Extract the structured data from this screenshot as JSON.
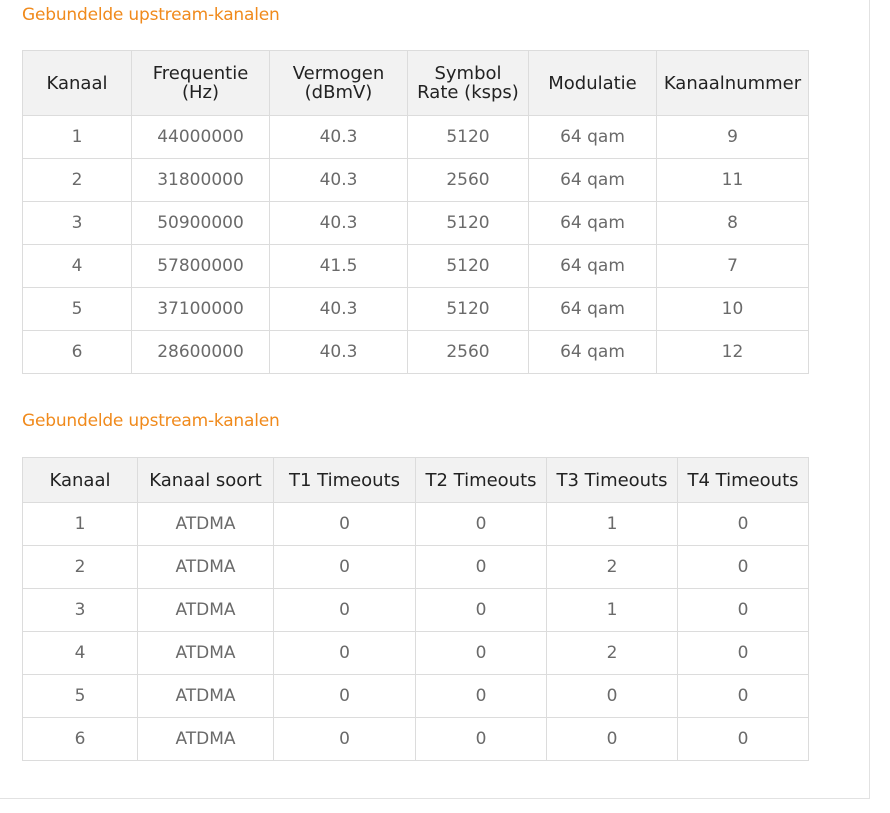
{
  "section1": {
    "title": "Gebundelde upstream-kanalen",
    "headers": [
      [
        "Kanaal"
      ],
      [
        "Frequentie",
        "(Hz)"
      ],
      [
        "Vermogen",
        "(dBmV)"
      ],
      [
        "Symbol",
        "Rate (ksps)"
      ],
      [
        "Modulatie"
      ],
      [
        "Kanaalnummer"
      ]
    ],
    "rows": [
      [
        "1",
        "44000000",
        "40.3",
        "5120",
        "64 qam",
        "9"
      ],
      [
        "2",
        "31800000",
        "40.3",
        "2560",
        "64 qam",
        "11"
      ],
      [
        "3",
        "50900000",
        "40.3",
        "5120",
        "64 qam",
        "8"
      ],
      [
        "4",
        "57800000",
        "41.5",
        "5120",
        "64 qam",
        "7"
      ],
      [
        "5",
        "37100000",
        "40.3",
        "5120",
        "64 qam",
        "10"
      ],
      [
        "6",
        "28600000",
        "40.3",
        "2560",
        "64 qam",
        "12"
      ]
    ]
  },
  "section2": {
    "title": "Gebundelde upstream-kanalen",
    "headers": [
      [
        "Kanaal"
      ],
      [
        "Kanaal soort"
      ],
      [
        "T1 Timeouts"
      ],
      [
        "T2 Timeouts"
      ],
      [
        "T3 Timeouts"
      ],
      [
        "T4 Timeouts"
      ]
    ],
    "rows": [
      [
        "1",
        "ATDMA",
        "0",
        "0",
        "1",
        "0"
      ],
      [
        "2",
        "ATDMA",
        "0",
        "0",
        "2",
        "0"
      ],
      [
        "3",
        "ATDMA",
        "0",
        "0",
        "1",
        "0"
      ],
      [
        "4",
        "ATDMA",
        "0",
        "0",
        "2",
        "0"
      ],
      [
        "5",
        "ATDMA",
        "0",
        "0",
        "0",
        "0"
      ],
      [
        "6",
        "ATDMA",
        "0",
        "0",
        "0",
        "0"
      ]
    ]
  },
  "colors": {
    "accent": "#f08a1c",
    "header_bg": "#f2f2f2",
    "border": "#dcdcdc",
    "cell_text": "#6a6a6a"
  }
}
